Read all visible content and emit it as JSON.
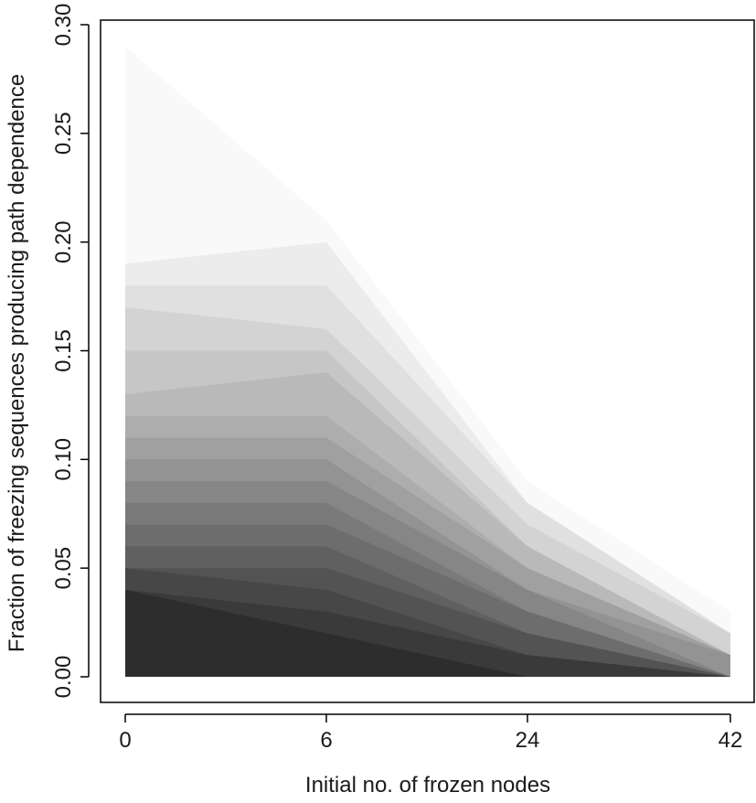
{
  "chart_data": {
    "type": "area",
    "xlabel": "Initial no. of frozen nodes",
    "ylabel": "Fraction of freezing sequences producing path dependence",
    "categories": [
      "0",
      "6",
      "24",
      "42"
    ],
    "ylim": [
      0,
      0.3
    ],
    "yticks": [
      "0.00",
      "0.05",
      "0.10",
      "0.15",
      "0.20",
      "0.25",
      "0.30"
    ],
    "grid": false,
    "legend": "none",
    "fill_color_darkest": "#2d2d2d",
    "fill_color_lightest": "#f9f9f9",
    "series": [
      {
        "values": [
          0.29,
          0.21,
          0.09,
          0.03
        ]
      },
      {
        "values": [
          0.19,
          0.2,
          0.08,
          0.02
        ]
      },
      {
        "values": [
          0.18,
          0.18,
          0.08,
          0.02
        ]
      },
      {
        "values": [
          0.17,
          0.16,
          0.07,
          0.02
        ]
      },
      {
        "values": [
          0.15,
          0.15,
          0.06,
          0.01
        ]
      },
      {
        "values": [
          0.13,
          0.14,
          0.06,
          0.01
        ]
      },
      {
        "values": [
          0.12,
          0.12,
          0.05,
          0.01
        ]
      },
      {
        "values": [
          0.11,
          0.11,
          0.05,
          0.01
        ]
      },
      {
        "values": [
          0.1,
          0.1,
          0.04,
          0.01
        ]
      },
      {
        "values": [
          0.09,
          0.09,
          0.04,
          0.0
        ]
      },
      {
        "values": [
          0.08,
          0.08,
          0.03,
          0.0
        ]
      },
      {
        "values": [
          0.07,
          0.07,
          0.03,
          0.0
        ]
      },
      {
        "values": [
          0.06,
          0.06,
          0.02,
          0.0
        ]
      },
      {
        "values": [
          0.05,
          0.05,
          0.02,
          0.0
        ]
      },
      {
        "values": [
          0.05,
          0.04,
          0.01,
          0.0
        ]
      },
      {
        "values": [
          0.04,
          0.03,
          0.01,
          0.0
        ]
      },
      {
        "values": [
          0.04,
          0.02,
          0.0,
          0.0
        ]
      }
    ]
  }
}
